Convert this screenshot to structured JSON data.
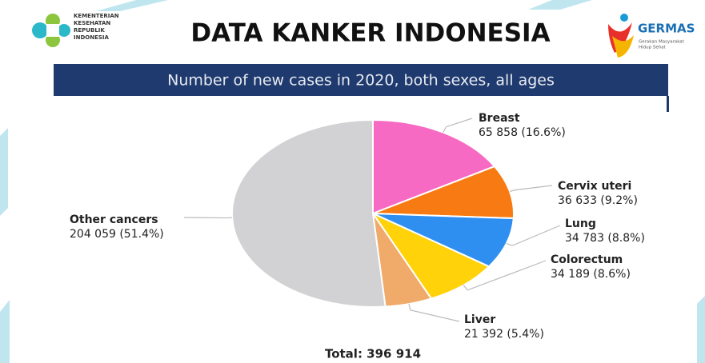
{
  "header": {
    "ministry": [
      "KEMENTERIAN",
      "KESEHATAN",
      "REPUBLIK",
      "INDONESIA"
    ],
    "brand": "GERMAS",
    "brand_tagline": [
      "Gerakan Masyarakat",
      "Hidup Sehat"
    ]
  },
  "chart_data": {
    "type": "pie",
    "title": "DATA KANKER INDONESIA",
    "subtitle": "Number of new cases in 2020, both sexes, all ages",
    "categories": [
      "Breast",
      "Cervix uteri",
      "Lung",
      "Colorectum",
      "Liver",
      "Other cancers"
    ],
    "values": [
      65858,
      36633,
      34783,
      34189,
      21392,
      204059
    ],
    "value_labels": [
      "65 858 (16.6%)",
      "36 633 (9.2%)",
      "34 783 (8.8%)",
      "34 189 (8.6%)",
      "21 392 (5.4%)",
      "204 059 (51.4%)"
    ],
    "colors": [
      "#f76ac3",
      "#f77b12",
      "#2f8ff0",
      "#ffd20a",
      "#f0aa6a",
      "#d2d2d4"
    ],
    "annotation": "Total: 396 914"
  }
}
